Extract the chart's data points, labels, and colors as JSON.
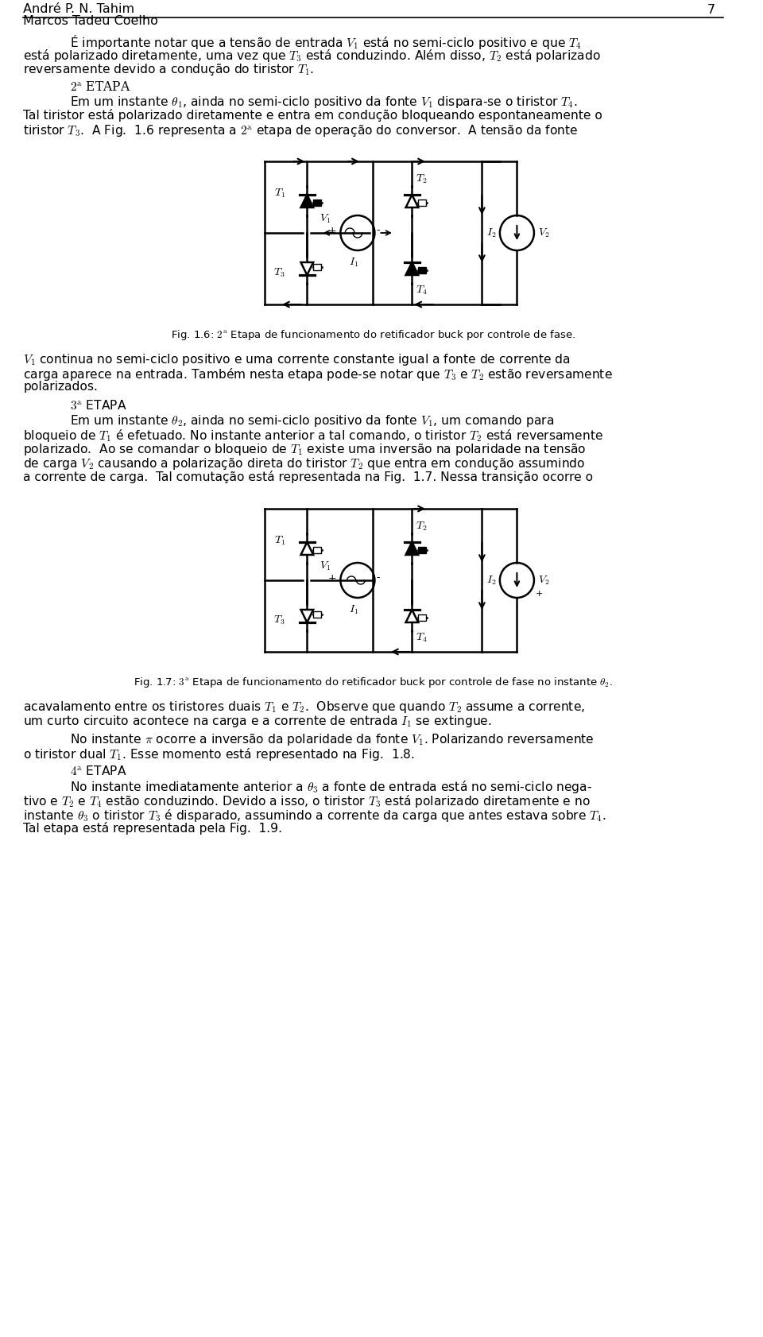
{
  "header_line1": "André P. N. Tahim",
  "header_line2": "Marcos Tadeu Coelho",
  "page_number": "7",
  "bg_color": "#ffffff",
  "text_color": "#000000",
  "font_size_body": 11.5,
  "font_size_caption": 9.5,
  "font_size_header": 11.5,
  "paragraph1": "É importante notar que a tensão de entrada $V_1$ está no semi-ciclo positivo e que $T_4$\nestá polarizado diretamente, uma vez que $T_3$ está conduzindo. Além disso, $T_2$ está polarizado\nreversamente devido a condução do tiristor $T_1$.",
  "heading2": "$2^\\mathrm{a}$ E\\textsc{tapa}",
  "paragraph2": "Em um instante $\\theta_1$, ainda no semi-ciclo positivo da fonte $V_1$ dispara-se o tiristor $T_4$.\nTal tiristor está polarizado diretamente e entra em condução bloqueando espontaneamente o\ntiristor $T_3$.  A Fig.  1.6 representa a $2^\\mathrm{a}$ etapa de operação do conversor.  A tensão da fonte",
  "caption_fig16": "Fig. 1.6: $2^\\mathrm{a}$ Etapa de funcionamento do retificador buck por controle de fase.",
  "paragraph3": "$V_1$ continua no semi-ciclo positivo e uma corrente constante igual a fonte de corrente da\ncarga aparece na entrada. Também nesta etapa pode-se notar que $T_3$ e $T_2$ estão reversamente\npolarizados.",
  "heading3": "$3^\\mathrm{a}$ E\\textsc{tapa}",
  "paragraph4": "Em um instante $\\theta_2$, ainda no semi-ciclo positivo da fonte $V_1$, um comando para\nbloqueio de $T_1$ é efetuado. No instante anterior a tal comando, o tiristor $T_2$ está reversamente\npolarizado.  Ao se comandar o bloqueio de $T_1$ existe uma inversão na polaridade na tensão\nde carga $V_2$ causando a polarização direta do tiristor $T_2$ que entra em condução assumindo\na corrente de carga.  Tal comutação está representada na Fig.  1.7. Nessa transição ocorre o",
  "caption_fig17": "Fig. 1.7: $3^\\mathrm{a}$ Etapa de funcionamento do retificador buck por controle de fase no instante $\\theta_2$.",
  "paragraph5": "acavalamento entre os tiristores duais $T_1$ e $T_2$.  Observe que quando $T_2$ assume a corrente,\num curto circuito acontece na carga e a corrente de entrada $I_1$ se extingue.",
  "paragraph6": "No instante $\\pi$ ocorre a inversão da polaridade da fonte $V_1$. Polarizando reversamente\no tiristor dual $T_1$. Esse momento está representado na Fig.  1.8.",
  "heading4": "$4^\\mathrm{a}$ E\\textsc{tapa}",
  "paragraph7": "No instante imediatamente anterior a $\\theta_3$ a fonte de entrada está no semi-ciclo nega-\ntivo e $T_2$ e $T_4$ estão conduzindo. Devido a isso, o tiristor $T_3$ está polarizado diretamente e no\ninstante $\\theta_3$ o tiristor $T_3$ é disparado, assumindo a corrente da carga que antes estava sobre $T_4$.\nTal etapa está representada pela Fig.  1.9."
}
